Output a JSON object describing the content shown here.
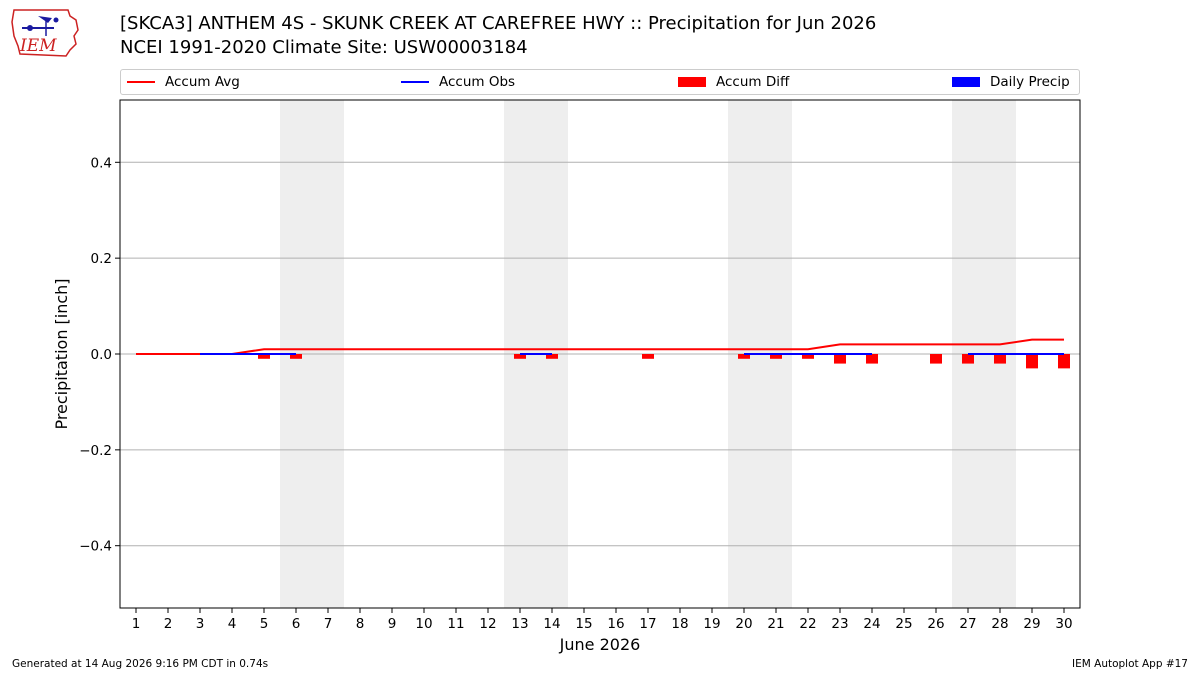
{
  "header": {
    "title_line1": "[SKCA3] ANTHEM 4S - SKUNK CREEK AT CAREFREE HWY :: Precipitation for Jun 2026",
    "title_line2": "NCEI 1991-2020 Climate Site: USW00003184"
  },
  "logo": {
    "text": "IEM"
  },
  "legend": {
    "placement": "top",
    "items": [
      {
        "label": "Accum Avg",
        "color": "#ff0000",
        "kind": "line"
      },
      {
        "label": "Accum Obs",
        "color": "#0000ff",
        "kind": "line"
      },
      {
        "label": "Accum Diff",
        "color": "#ff0000",
        "kind": "box"
      },
      {
        "label": "Daily Precip",
        "color": "#0000ff",
        "kind": "box"
      }
    ]
  },
  "footer": {
    "left": "Generated at 14 Aug 2026 9:16 PM CDT in 0.74s",
    "right": "IEM Autoplot App #17"
  },
  "chart_data": {
    "type": "line",
    "xlabel": "June 2026",
    "ylabel": "Precipitation [inch]",
    "x": [
      1,
      2,
      3,
      4,
      5,
      6,
      7,
      8,
      9,
      10,
      11,
      12,
      13,
      14,
      15,
      16,
      17,
      18,
      19,
      20,
      21,
      22,
      23,
      24,
      25,
      26,
      27,
      28,
      29,
      30
    ],
    "xlim": [
      0.5,
      30.5
    ],
    "ylim": [
      -0.53,
      0.53
    ],
    "yticks": [
      0.4,
      0.2,
      0.0,
      -0.2,
      -0.4
    ],
    "ytick_labels": [
      "0.4",
      "0.2",
      "0.0",
      "−0.2",
      "−0.4"
    ],
    "grid": "y",
    "weekend_shading": [
      [
        5.5,
        7.5
      ],
      [
        12.5,
        14.5
      ],
      [
        19.5,
        21.5
      ],
      [
        26.5,
        28.5
      ]
    ],
    "series": [
      {
        "name": "Accum Avg",
        "kind": "line",
        "color": "#ff0000",
        "x": [
          1,
          2,
          3,
          4,
          5,
          6,
          7,
          8,
          9,
          10,
          11,
          12,
          13,
          14,
          15,
          16,
          17,
          18,
          19,
          20,
          21,
          22,
          23,
          24,
          25,
          26,
          27,
          28,
          29,
          30
        ],
        "values": [
          0,
          0,
          0,
          0,
          0.01,
          0.01,
          0.01,
          0.01,
          0.01,
          0.01,
          0.01,
          0.01,
          0.01,
          0.01,
          0.01,
          0.01,
          0.01,
          0.01,
          0.01,
          0.01,
          0.01,
          0.01,
          0.02,
          0.02,
          0.02,
          0.02,
          0.02,
          0.02,
          0.03,
          0.03
        ]
      },
      {
        "name": "Accum Obs",
        "kind": "line",
        "color": "#0000ff",
        "segments": [
          {
            "x": [
              3,
              4,
              5,
              6
            ],
            "values": [
              0,
              0,
              0,
              0
            ]
          },
          {
            "x": [
              13,
              14
            ],
            "values": [
              0,
              0
            ]
          },
          {
            "x": [
              20,
              21,
              22,
              23,
              24
            ],
            "values": [
              0,
              0,
              0,
              0,
              0
            ]
          },
          {
            "x": [
              27,
              28,
              29,
              30
            ],
            "values": [
              0,
              0,
              0,
              0
            ]
          }
        ]
      },
      {
        "name": "Accum Diff",
        "kind": "bar",
        "color": "#ff0000",
        "x": [
          5,
          6,
          13,
          14,
          17,
          20,
          21,
          22,
          23,
          24,
          26,
          27,
          28,
          29,
          30
        ],
        "values": [
          -0.01,
          -0.01,
          -0.01,
          -0.01,
          -0.01,
          -0.01,
          -0.01,
          -0.01,
          -0.02,
          -0.02,
          -0.02,
          -0.02,
          -0.02,
          -0.03,
          -0.03
        ]
      },
      {
        "name": "Daily Precip",
        "kind": "bar",
        "color": "#0000ff",
        "x": [],
        "values": []
      }
    ]
  }
}
